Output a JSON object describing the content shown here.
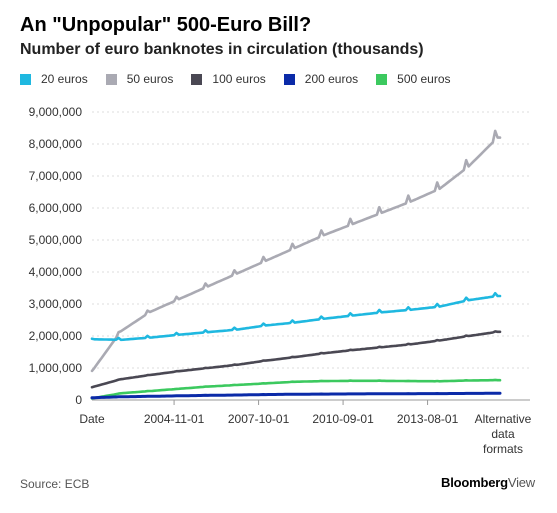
{
  "header": {
    "title": "An \"Unpopular\" 500-Euro Bill?",
    "subtitle": "Number of euro banknotes in circulation (thousands)"
  },
  "footer": {
    "source": "Source: ECB",
    "brand_main": "Bloomberg",
    "brand_sub": "View"
  },
  "colors": {
    "s20": "#1fb8e0",
    "s50": "#aaaab3",
    "s100": "#4a4853",
    "s200": "#0b2aa8",
    "s500": "#3cc95f",
    "grid": "#dddddd",
    "axis": "#999999"
  },
  "chart_data": {
    "type": "line",
    "xlabel": "Date",
    "x_start": "2002-01",
    "x_end": "2016-02",
    "x_ticks": [
      "2004-11-01",
      "2007-10-01",
      "2010-09-01",
      "2013-08-01"
    ],
    "x_tick_extra": [
      "Alternative",
      "data",
      "formats"
    ],
    "ylim": [
      0,
      9000000
    ],
    "y_ticks": [
      0,
      1000000,
      2000000,
      3000000,
      4000000,
      5000000,
      6000000,
      7000000,
      8000000,
      9000000
    ],
    "y_tick_labels": [
      "0",
      "1,000,000",
      "2,000,000",
      "3,000,000",
      "4,000,000",
      "5,000,000",
      "6,000,000",
      "7,000,000",
      "8,000,000",
      "9,000,000"
    ],
    "years": [
      "2002",
      "2003",
      "2004",
      "2005",
      "2006",
      "2007",
      "2008",
      "2009",
      "2010",
      "2011",
      "2012",
      "2013",
      "2014",
      "2015",
      "2016"
    ],
    "series": [
      {
        "name": "20 euros",
        "key": "s20",
        "values": [
          1900000,
          1880000,
          1950000,
          2040000,
          2120000,
          2200000,
          2330000,
          2420000,
          2540000,
          2640000,
          2740000,
          2820000,
          2920000,
          3120000,
          3250000
        ]
      },
      {
        "name": "50 euros",
        "key": "s50",
        "values": [
          900000,
          2150000,
          2750000,
          3150000,
          3550000,
          3950000,
          4350000,
          4750000,
          5150000,
          5500000,
          5850000,
          6200000,
          6600000,
          7300000,
          8200000
        ]
      },
      {
        "name": "100 euros",
        "key": "s100",
        "values": [
          400000,
          650000,
          780000,
          900000,
          1000000,
          1100000,
          1230000,
          1340000,
          1460000,
          1560000,
          1650000,
          1740000,
          1860000,
          2000000,
          2130000
        ]
      },
      {
        "name": "200 euros",
        "key": "s200",
        "values": [
          70000,
          100000,
          115000,
          130000,
          145000,
          155000,
          170000,
          180000,
          185000,
          190000,
          195000,
          198000,
          200000,
          205000,
          210000
        ]
      },
      {
        "name": "500 euros",
        "key": "s500",
        "values": [
          50000,
          210000,
          280000,
          350000,
          420000,
          470000,
          520000,
          570000,
          590000,
          600000,
          600000,
          590000,
          585000,
          610000,
          620000
        ]
      }
    ]
  }
}
